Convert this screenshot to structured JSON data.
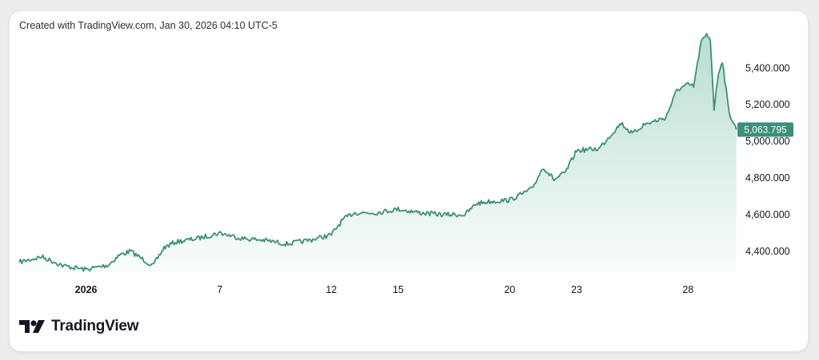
{
  "caption": "Created with TradingView.com, Jan 30, 2026 04:10 UTC-5",
  "brand": {
    "name": "TradingView",
    "logo_icon": "tradingview-logo-icon"
  },
  "colors": {
    "line": "#3d8f7a",
    "fill_top": "#7fc2ad",
    "badge": "#3d8f7a"
  },
  "chart_data": {
    "type": "area",
    "x_ticks": [
      "2026",
      "7",
      "12",
      "15",
      "20",
      "23",
      "28"
    ],
    "y_ticks": [
      "5,400.000",
      "5,200.000",
      "5,000.000",
      "4,800.000",
      "4,600.000",
      "4,400.000"
    ],
    "y_tick_values": [
      5400,
      5200,
      5000,
      4800,
      4600,
      4400
    ],
    "last_value_label": "5,063.795",
    "last_value": 5063.795,
    "y_range": [
      4290,
      5580
    ],
    "x_range": [
      "2025-12-29",
      "2026-01-30"
    ],
    "tick_dates": [
      "2026-01-01",
      "2026-01-07",
      "2026-01-12",
      "2026-01-15",
      "2026-01-20",
      "2026-01-23",
      "2026-01-28"
    ],
    "series_points": [
      [
        "2025-12-29",
        4340
      ],
      [
        "2025-12-30",
        4370
      ],
      [
        "2025-12-31",
        4320
      ],
      [
        "2026-01-01",
        4300
      ],
      [
        "2026-01-02",
        4325
      ],
      [
        "2026-01-02T12:00",
        4380
      ],
      [
        "2026-01-03",
        4400
      ],
      [
        "2026-01-04",
        4320
      ],
      [
        "2026-01-04T12:00",
        4420
      ],
      [
        "2026-01-05",
        4450
      ],
      [
        "2026-01-06",
        4470
      ],
      [
        "2026-01-07",
        4500
      ],
      [
        "2026-01-08",
        4470
      ],
      [
        "2026-01-09",
        4460
      ],
      [
        "2026-01-10",
        4440
      ],
      [
        "2026-01-11",
        4460
      ],
      [
        "2026-01-12",
        4490
      ],
      [
        "2026-01-12T12:00",
        4570
      ],
      [
        "2026-01-13",
        4610
      ],
      [
        "2026-01-14",
        4610
      ],
      [
        "2026-01-15",
        4630
      ],
      [
        "2026-01-16",
        4610
      ],
      [
        "2026-01-17",
        4600
      ],
      [
        "2026-01-18",
        4600
      ],
      [
        "2026-01-18T12:00",
        4660
      ],
      [
        "2026-01-19",
        4670
      ],
      [
        "2026-01-20",
        4680
      ],
      [
        "2026-01-21",
        4740
      ],
      [
        "2026-01-21T12:00",
        4860
      ],
      [
        "2026-01-22",
        4790
      ],
      [
        "2026-01-22T12:00",
        4830
      ],
      [
        "2026-01-23",
        4950
      ],
      [
        "2026-01-24",
        4960
      ],
      [
        "2026-01-25",
        5100
      ],
      [
        "2026-01-25T12:00",
        5040
      ],
      [
        "2026-01-26",
        5090
      ],
      [
        "2026-01-27",
        5130
      ],
      [
        "2026-01-27T12:00",
        5280
      ],
      [
        "2026-01-28",
        5310
      ],
      [
        "2026-01-28T06:00",
        5300
      ],
      [
        "2026-01-28T14:00",
        5540
      ],
      [
        "2026-01-28T20:00",
        5580
      ],
      [
        "2026-01-29",
        5560
      ],
      [
        "2026-01-29T04:00",
        5180
      ],
      [
        "2026-01-29T09:00",
        5380
      ],
      [
        "2026-01-29T13:00",
        5440
      ],
      [
        "2026-01-29T17:00",
        5280
      ],
      [
        "2026-01-29T20:00",
        5160
      ],
      [
        "2026-01-30T04:10",
        5063.795
      ]
    ]
  }
}
